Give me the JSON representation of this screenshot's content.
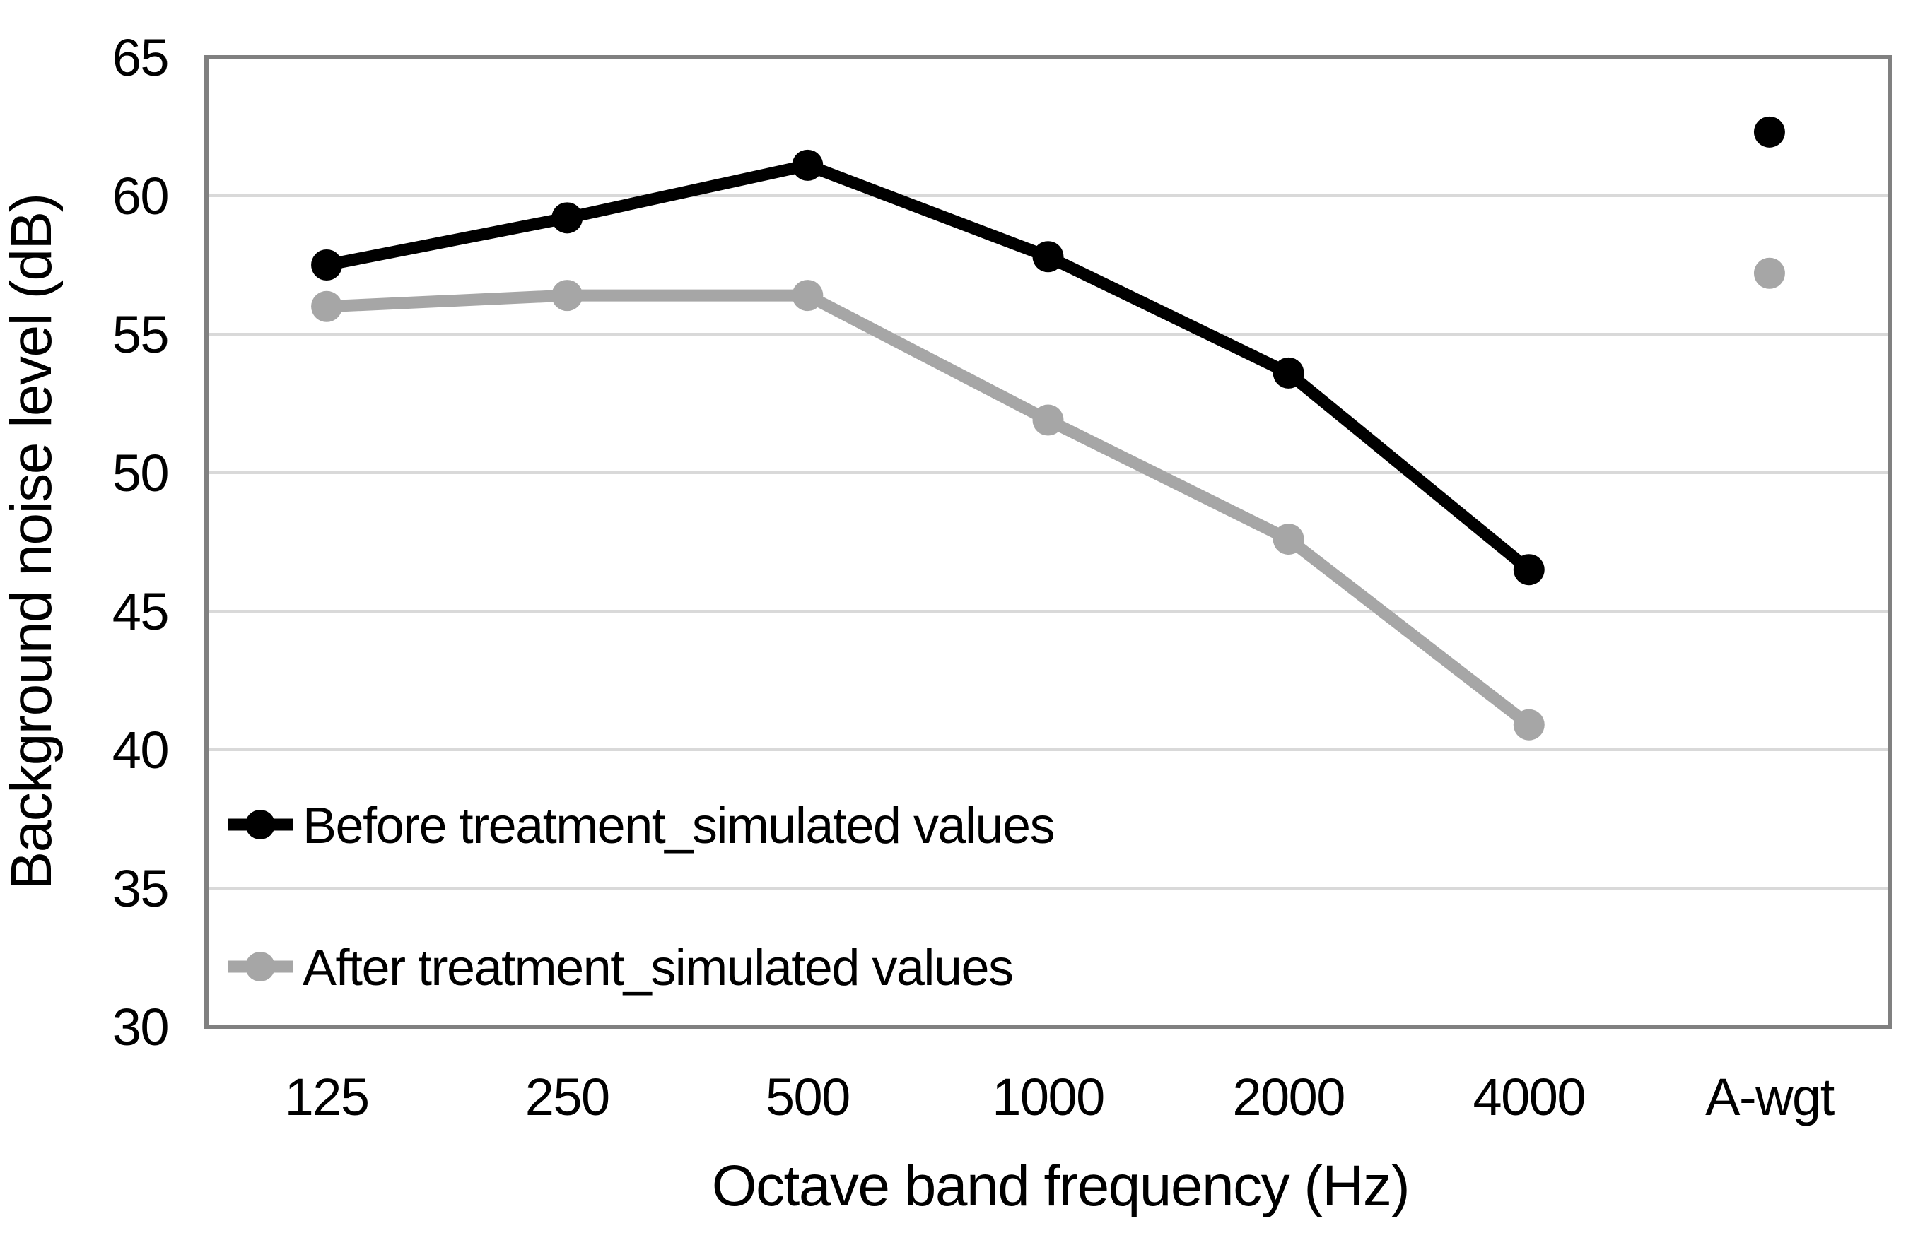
{
  "chart_data": {
    "type": "line",
    "title": "",
    "categories": [
      "125",
      "250",
      "500",
      "1000",
      "2000",
      "4000",
      "A-wgt"
    ],
    "series": [
      {
        "name": "Before treatment_simulated values",
        "color": "#000000",
        "values": [
          57.5,
          59.2,
          61.1,
          57.8,
          53.6,
          46.5,
          62.3
        ],
        "line_connects_first_n": 6,
        "last_point_isolated": true
      },
      {
        "name": "After treatment_simulated values",
        "color": "#A6A6A6",
        "values": [
          56.0,
          56.4,
          56.4,
          51.9,
          47.6,
          40.9,
          57.2
        ],
        "line_connects_first_n": 6,
        "last_point_isolated": true
      }
    ],
    "xlabel": "Octave band frequency (Hz)",
    "ylabel": "Background noise level (dB)",
    "ylim": [
      30,
      65
    ],
    "yticks": [
      65,
      60,
      55,
      50,
      45,
      40,
      35,
      30
    ],
    "grid": "horizontal",
    "legend_position": "inside-bottom-left",
    "colors": {
      "gridline": "#D9D9D9",
      "plot_border": "#808080",
      "series_before": "#000000",
      "series_after": "#A6A6A6",
      "text": "#000000",
      "background": "#FFFFFF"
    }
  }
}
